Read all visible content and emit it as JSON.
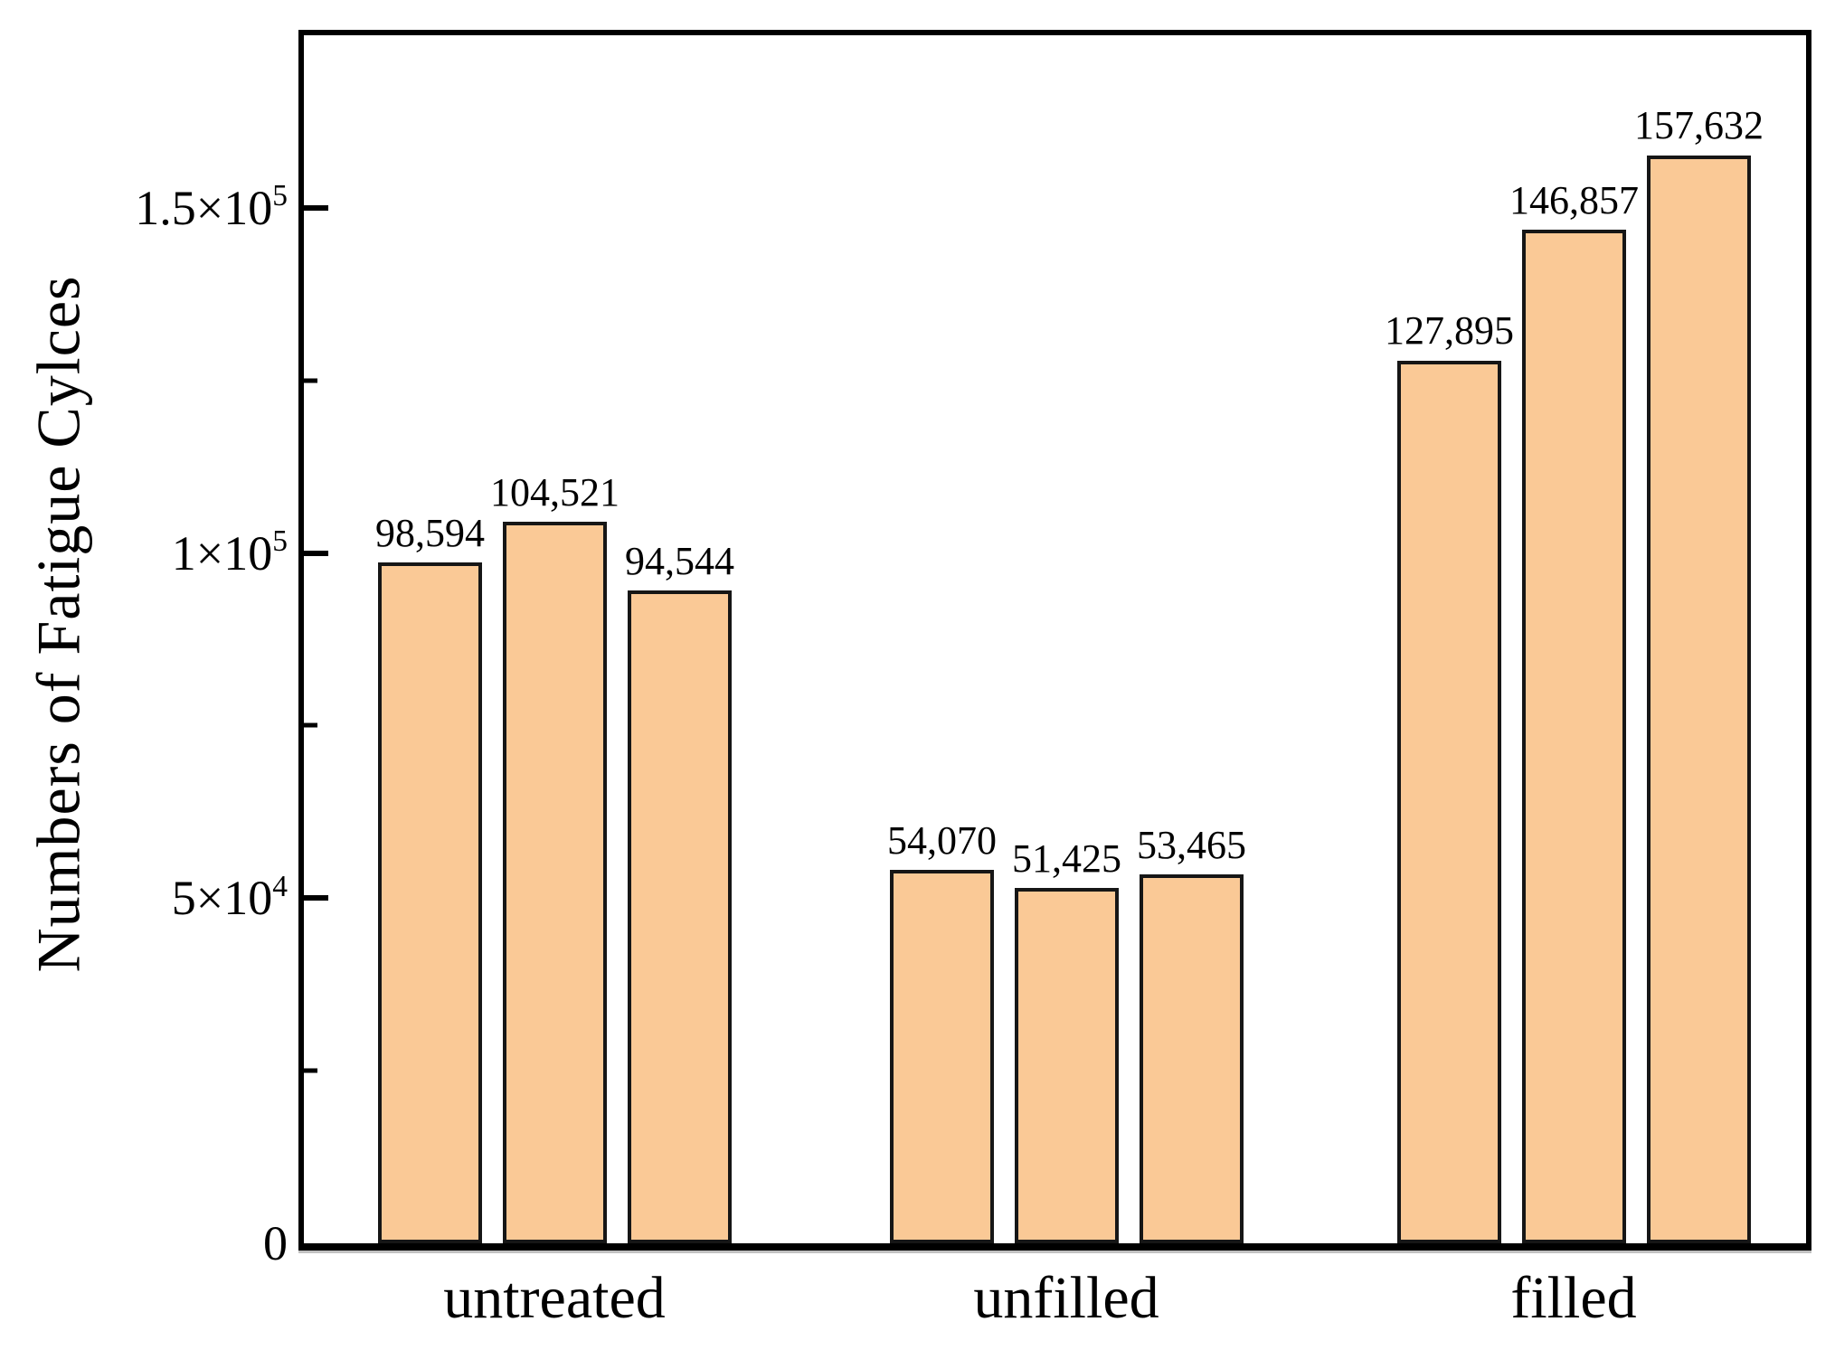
{
  "figure": {
    "background": "#ffffff",
    "bar_fill": "#FAC996",
    "bar_border": "#161616",
    "axis_color": "#000000"
  },
  "axis": {
    "y": {
      "title": "Numbers of Fatigue Cylces",
      "ticks": [
        {
          "base": "0",
          "exp": ""
        },
        {
          "base": "5×10",
          "exp": "4"
        },
        {
          "base": "1×10",
          "exp": "5"
        },
        {
          "base": "1.5×10",
          "exp": "5"
        }
      ]
    },
    "x": {
      "categories": [
        "untreated",
        "unfilled",
        "filled"
      ]
    }
  },
  "chart_data": {
    "type": "bar",
    "title": "",
    "xlabel": "",
    "ylabel": "Numbers of Fatigue Cylces",
    "categories": [
      "untreated",
      "unfilled",
      "filled"
    ],
    "groups": [
      {
        "category": "untreated",
        "values": [
          98594,
          104521,
          94544
        ],
        "labels": [
          "98,594",
          "104,521",
          "94,544"
        ]
      },
      {
        "category": "unfilled",
        "values": [
          54070,
          51425,
          53465
        ],
        "labels": [
          "54,070",
          "51,425",
          "53,465"
        ]
      },
      {
        "category": "filled",
        "values": [
          127895,
          146857,
          157632
        ],
        "labels": [
          "127,895",
          "146,857",
          "157,632"
        ]
      }
    ],
    "ylim": [
      0,
      175000
    ],
    "y_major_ticks": [
      0,
      50000,
      100000,
      150000
    ],
    "y_minor_ticks": [
      25000,
      75000,
      125000
    ],
    "grid": false,
    "legend": null,
    "bar_color": "#FAC996"
  }
}
